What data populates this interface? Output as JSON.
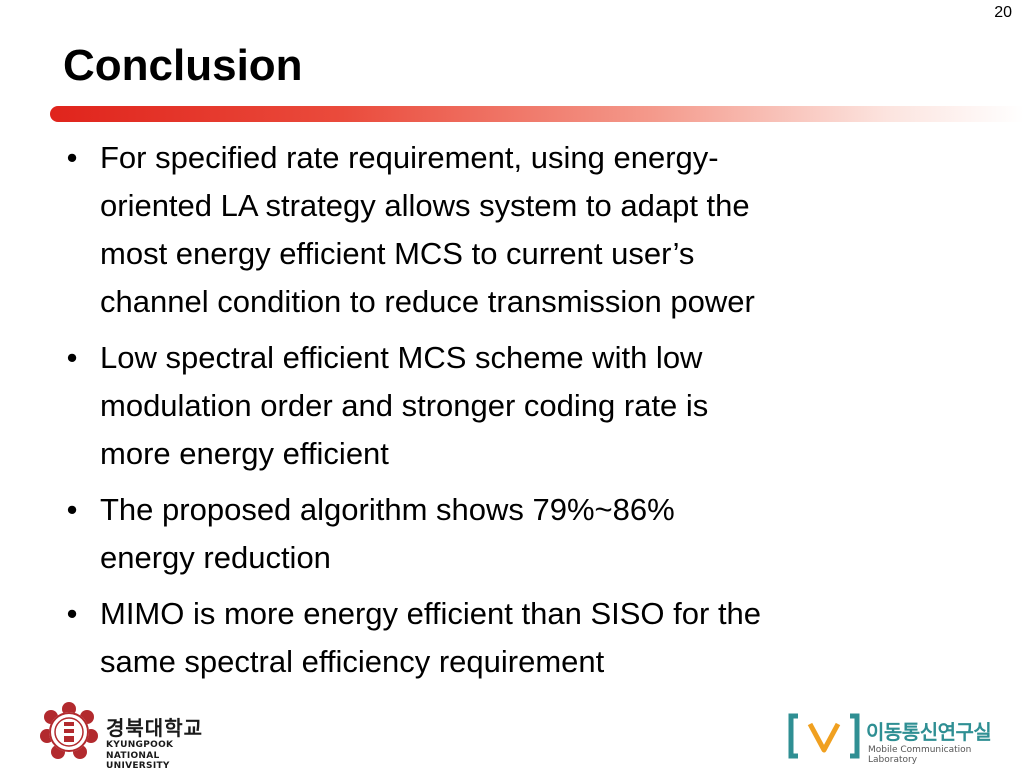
{
  "slide": {
    "page_number": "20",
    "title": "Conclusion",
    "bullet_glyph": "•",
    "bullets": [
      {
        "lines": [
          "For specified rate requirement, using energy-",
          "oriented LA strategy allows system to adapt the",
          "most energy efficient MCS to current user’s",
          "channel condition to reduce transmission power"
        ]
      },
      {
        "lines": [
          "Low spectral efficient MCS scheme with low",
          "modulation order and stronger coding rate is",
          "more energy efficient"
        ]
      },
      {
        "lines": [
          "The proposed algorithm shows 79%~86%",
          "energy reduction"
        ]
      },
      {
        "lines": [
          "MIMO is more energy efficient than SISO for the",
          "same spectral efficiency requirement"
        ]
      }
    ]
  },
  "footer": {
    "university_logo": {
      "name_ko": "경북대학교",
      "name_en_line1": "KYUNGPOOK",
      "name_en_line2": "NATIONAL UNIVERSITY",
      "emblem_icon": "university-seal-icon"
    },
    "lab_logo": {
      "name_ko": "이동통신연구실",
      "name_en": "Mobile Communication Laboratory",
      "mark_icon": "bracket-v-mark-icon"
    }
  },
  "colors": {
    "title_bar_start": "#e0241c",
    "university_red": "#b22a2e",
    "lab_teal": "#2f8f93",
    "lab_orange": "#f0a020"
  }
}
